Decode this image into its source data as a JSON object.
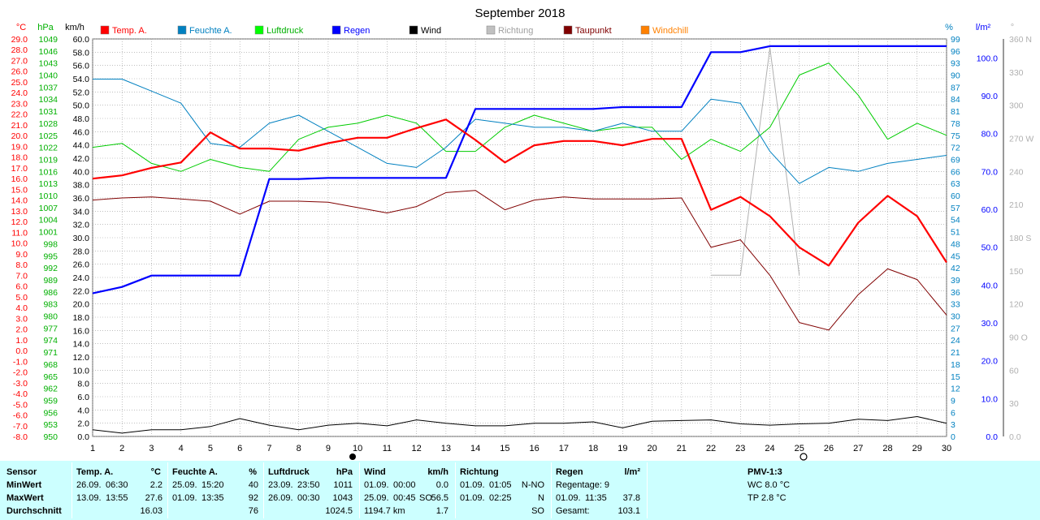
{
  "title": "September 2018",
  "axis_units": {
    "temp": "°C",
    "pressure": "hPa",
    "wind": "km/h",
    "humidity": "%",
    "rain": "l/m²",
    "direction": "°"
  },
  "legend": [
    {
      "label": "Temp. A.",
      "color": "#ff0000",
      "label_color": "#ff0000"
    },
    {
      "label": "Feuchte A.",
      "color": "#0080c0",
      "label_color": "#0080c0"
    },
    {
      "label": "Luftdruck",
      "color": "#00ff00",
      "label_color": "#00b000"
    },
    {
      "label": "Regen",
      "color": "#0000ff",
      "label_color": "#0000ff"
    },
    {
      "label": "Wind",
      "color": "#000000",
      "label_color": "#000000"
    },
    {
      "label": "Richtung",
      "color": "#c0c0c0",
      "label_color": "#a0a0a0"
    },
    {
      "label": "Taupunkt",
      "color": "#800000",
      "label_color": "#800000"
    },
    {
      "label": "Windchill",
      "color": "#ff8000",
      "label_color": "#ff8000"
    }
  ],
  "colors": {
    "temp": "#ff0000",
    "humidity": "#0080c0",
    "pressure": "#00cc00",
    "rain": "#0000ff",
    "wind": "#000000",
    "direction": "#b0b0b0",
    "dewpoint": "#800000",
    "grid": "#999999",
    "footer_bg": "#ccffff"
  },
  "chart_data": {
    "type": "line",
    "title": "September 2018",
    "x": [
      1,
      2,
      3,
      4,
      5,
      6,
      7,
      8,
      9,
      10,
      11,
      12,
      13,
      14,
      15,
      16,
      17,
      18,
      19,
      20,
      21,
      22,
      23,
      24,
      25,
      26,
      27,
      28,
      29,
      30
    ],
    "x_ticks": [
      1,
      2,
      3,
      4,
      5,
      6,
      7,
      8,
      9,
      10,
      11,
      12,
      13,
      14,
      15,
      16,
      17,
      18,
      19,
      20,
      21,
      22,
      23,
      24,
      25,
      26,
      27,
      28,
      29,
      30
    ],
    "axes": {
      "temp": {
        "range": [
          -8.0,
          29.0
        ],
        "ticks": [
          "29.0",
          "28.0",
          "27.0",
          "26.0",
          "25.0",
          "24.0",
          "23.0",
          "22.0",
          "21.0",
          "20.0",
          "19.0",
          "18.0",
          "17.0",
          "16.0",
          "15.0",
          "14.0",
          "13.0",
          "12.0",
          "11.0",
          "10.0",
          "9.0",
          "8.0",
          "7.0",
          "6.0",
          "5.0",
          "4.0",
          "3.0",
          "2.0",
          "1.0",
          "0.0",
          "-1.0",
          "-2.0",
          "-3.0",
          "-4.0",
          "-5.0",
          "-6.0",
          "-7.0",
          "-8.0"
        ]
      },
      "pressure": {
        "range": [
          950,
          1049
        ],
        "ticks": [
          "1049",
          "1046",
          "1043",
          "1040",
          "1037",
          "1034",
          "1031",
          "1028",
          "1025",
          "1022",
          "1019",
          "1016",
          "1013",
          "1010",
          "1007",
          "1004",
          "1001",
          "998",
          "995",
          "992",
          "989",
          "986",
          "983",
          "980",
          "977",
          "974",
          "971",
          "968",
          "965",
          "962",
          "959",
          "956",
          "953",
          "950"
        ]
      },
      "wind": {
        "range": [
          0.0,
          60.0
        ],
        "ticks": [
          "60.0",
          "58.0",
          "56.0",
          "54.0",
          "52.0",
          "50.0",
          "48.0",
          "46.0",
          "44.0",
          "42.0",
          "40.0",
          "38.0",
          "36.0",
          "34.0",
          "32.0",
          "30.0",
          "28.0",
          "26.0",
          "24.0",
          "22.0",
          "20.0",
          "18.0",
          "16.0",
          "14.0",
          "12.0",
          "10.0",
          "8.0",
          "6.0",
          "4.0",
          "2.0",
          "0.0"
        ]
      },
      "humidity": {
        "range": [
          0,
          99
        ],
        "ticks": [
          "99",
          "96",
          "93",
          "90",
          "87",
          "84",
          "81",
          "78",
          "75",
          "72",
          "69",
          "66",
          "63",
          "60",
          "57",
          "54",
          "51",
          "48",
          "45",
          "42",
          "39",
          "36",
          "33",
          "30",
          "27",
          "24",
          "21",
          "18",
          "15",
          "12",
          "9",
          "6",
          "3",
          "0"
        ]
      },
      "rain": {
        "range": [
          0.0,
          105.0
        ],
        "ticks": [
          "100.0",
          "90.0",
          "80.0",
          "70.0",
          "60.0",
          "50.0",
          "40.0",
          "30.0",
          "20.0",
          "10.0",
          "0.0"
        ]
      },
      "direction": {
        "range": [
          0,
          360
        ],
        "ticks": [
          "360 N",
          "330",
          "300",
          "270 W",
          "240",
          "210",
          "180 S",
          "150",
          "120",
          "90 O",
          "60",
          "30",
          "0.0"
        ]
      }
    },
    "series": [
      {
        "name": "Temp. A.",
        "axis": "temp",
        "values": [
          16.0,
          16.3,
          17.0,
          17.5,
          20.3,
          18.8,
          18.8,
          18.6,
          19.3,
          19.8,
          19.8,
          20.7,
          21.5,
          19.6,
          17.5,
          19.1,
          19.5,
          19.5,
          19.1,
          19.7,
          19.7,
          13.1,
          14.3,
          12.5,
          9.6,
          7.9,
          11.9,
          14.4,
          12.5,
          8.2
        ]
      },
      {
        "name": "Feuchte A.",
        "axis": "humidity",
        "values": [
          89,
          89,
          86,
          83,
          73,
          72,
          78,
          80,
          76,
          72,
          68,
          67,
          72,
          79,
          78,
          77,
          77,
          76,
          78,
          76,
          76,
          84,
          83,
          71,
          63,
          67,
          66,
          68,
          69,
          70
        ]
      },
      {
        "name": "Luftdruck",
        "axis": "pressure",
        "values": [
          1022,
          1023,
          1018,
          1016,
          1019,
          1017,
          1016,
          1024,
          1027,
          1028,
          1030,
          1028,
          1021,
          1021,
          1027,
          1030,
          1028,
          1026,
          1027,
          1027,
          1019,
          1024,
          1021,
          1027,
          1040,
          1043,
          1035,
          1024,
          1028,
          1025
        ]
      },
      {
        "name": "Regen",
        "axis": "rain",
        "values": [
          37.8,
          39.5,
          42.5,
          42.5,
          42.5,
          42.5,
          68.0,
          68.0,
          68.3,
          68.3,
          68.3,
          68.3,
          68.3,
          86.5,
          86.5,
          86.5,
          86.5,
          86.5,
          87.0,
          87.0,
          87.0,
          101.5,
          101.5,
          103.1,
          103.1,
          103.1,
          103.1,
          103.1,
          103.1,
          103.1
        ]
      },
      {
        "name": "Wind",
        "axis": "wind",
        "values": [
          1.0,
          0.5,
          1.0,
          1.0,
          1.5,
          2.7,
          1.7,
          1.0,
          1.7,
          2.0,
          1.6,
          2.5,
          2.0,
          1.6,
          1.6,
          2.0,
          2.0,
          2.2,
          1.3,
          2.3,
          2.4,
          2.5,
          1.9,
          1.7,
          1.9,
          2.0,
          2.6,
          2.4,
          3.0,
          2.0
        ]
      },
      {
        "name": "Richtung",
        "axis": "direction",
        "x": [
          22.0,
          23.0,
          24.0,
          25.0
        ],
        "values": [
          146,
          146,
          352,
          146
        ]
      },
      {
        "name": "Taupunkt",
        "axis": "temp",
        "values": [
          14.0,
          14.2,
          14.3,
          14.1,
          13.9,
          12.7,
          13.9,
          13.9,
          13.8,
          13.3,
          12.8,
          13.4,
          14.7,
          14.9,
          13.1,
          14.0,
          14.3,
          14.1,
          14.1,
          14.1,
          14.2,
          9.6,
          10.3,
          7.0,
          2.6,
          1.9,
          5.2,
          7.6,
          6.6,
          3.3
        ]
      }
    ]
  },
  "footer": {
    "sensor": {
      "title": "Sensor",
      "rows": [
        "MinWert",
        "MaxWert",
        "Durchschnitt"
      ]
    },
    "temp": {
      "title": "Temp. A.",
      "unit": "°C",
      "min_date": "26.09.",
      "min_time": "06:30",
      "min_val": "2.2",
      "max_date": "13.09.",
      "max_time": "13:55",
      "max_val": "27.6",
      "avg": "16.03"
    },
    "humidity": {
      "title": "Feuchte A.",
      "unit": "%",
      "min_date": "25.09.",
      "min_time": "15:20",
      "min_val": "40",
      "max_date": "01.09.",
      "max_time": "13:35",
      "max_val": "92",
      "avg": "76"
    },
    "pressure": {
      "title": "Luftdruck",
      "unit": "hPa",
      "min_date": "23.09.",
      "min_time": "23:50",
      "min_val": "1011",
      "max_date": "26.09.",
      "max_time": "00:30",
      "max_val": "1043",
      "avg": "1024.5"
    },
    "wind": {
      "title": "Wind",
      "unit": "km/h",
      "min_date": "01.09.",
      "min_time": "00:00",
      "min_val": "0.0",
      "max_date": "25.09.",
      "max_time": "00:45",
      "max_dir": "SO",
      "max_val": "56.5",
      "avg_label": "1194.7 km",
      "avg": "1.7"
    },
    "direction": {
      "title": "Richtung",
      "min_date": "01.09.",
      "min_time": "01:05",
      "min_val": "N-NO",
      "max_date": "01.09.",
      "max_time": "02:25",
      "max_val": "N",
      "avg": "SO"
    },
    "rain": {
      "title": "Regen",
      "unit": "l/m²",
      "row1": "Regentage: 9",
      "max_date": "01.09.",
      "max_time": "11:35",
      "max_val": "37.8",
      "total_label": "Gesamt:",
      "total": "103.1"
    },
    "pmv": {
      "title": "PMV-1:3",
      "wc": "WC 8.0 °C",
      "tp": "TP 2.8 °C"
    }
  }
}
